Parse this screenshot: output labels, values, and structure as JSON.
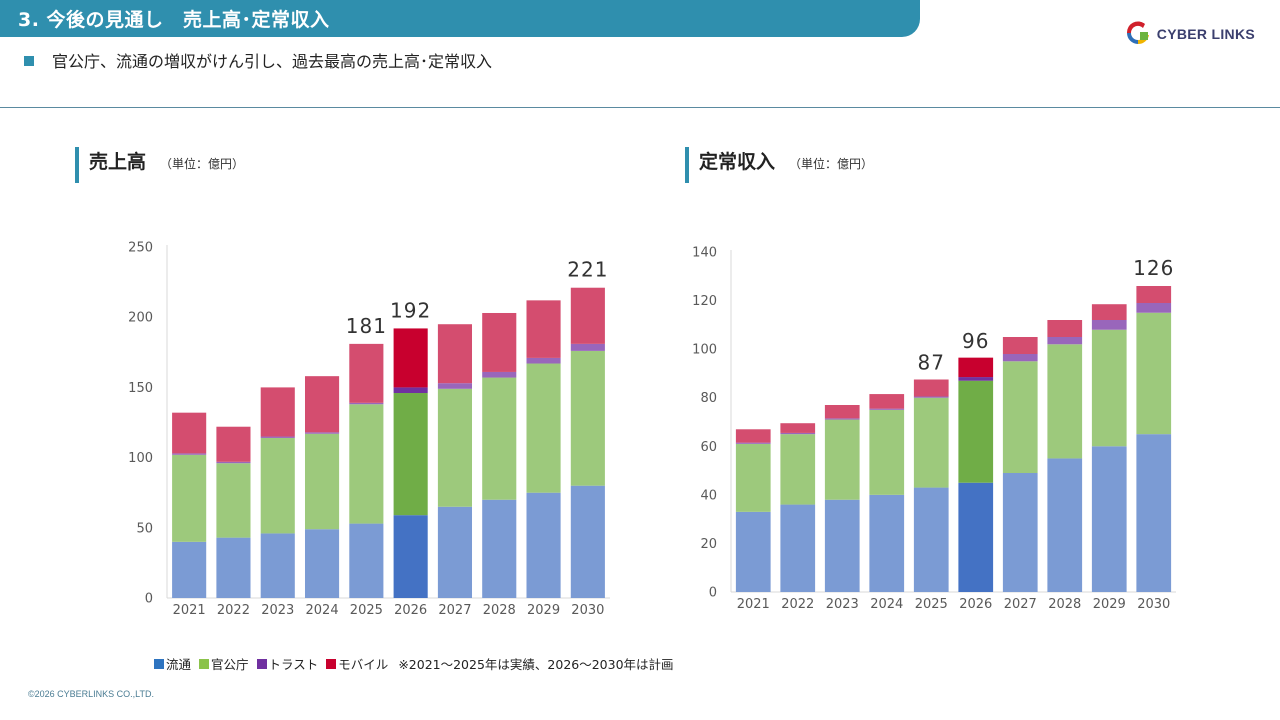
{
  "header": {
    "title": "3. 今後の見通し　売上高･定常収入",
    "subtitle": "官公庁、流通の増収がけん引し、過去最高の売上高･定常収入"
  },
  "logo": {
    "text": "CYBER LINKS"
  },
  "colors": {
    "title_bar": "#2f8fae",
    "ryutsu_actual": "#7b9bd4",
    "ryutsu_2026": "#4472c4",
    "kankocho_actual": "#9dc97c",
    "kankocho_2026": "#70ad47",
    "trust_actual": "#9966bb",
    "trust_2026": "#7030a0",
    "mobile_actual": "#d44d6f",
    "mobile_2026": "#c8002e"
  },
  "legend": {
    "items": [
      {
        "label": "流通",
        "color": "#2e74c0"
      },
      {
        "label": "官公庁",
        "color": "#8bc34a"
      },
      {
        "label": "トラスト",
        "color": "#7030a0"
      },
      {
        "label": "モバイル",
        "color": "#c8002e"
      }
    ],
    "note": "※2021～2025年は実績、2026～2030年は計画"
  },
  "footer": {
    "copyright": "©2026 CYBERLINKS CO.,LTD."
  },
  "chart_data": [
    {
      "type": "bar",
      "stacked": true,
      "title": "売上高",
      "unit": "（単位：億円）",
      "categories": [
        "2021",
        "2022",
        "2023",
        "2024",
        "2025",
        "2026",
        "2027",
        "2028",
        "2029",
        "2030"
      ],
      "ylim": [
        0,
        250
      ],
      "yticks": [
        0,
        50,
        100,
        150,
        200,
        250
      ],
      "series": [
        {
          "name": "流通",
          "values": [
            40,
            43,
            46,
            49,
            53,
            59,
            65,
            70,
            75,
            80
          ]
        },
        {
          "name": "官公庁",
          "values": [
            62,
            53,
            68,
            68,
            85,
            87,
            84,
            87,
            92,
            96
          ]
        },
        {
          "name": "トラスト",
          "values": [
            1,
            1,
            1,
            1,
            1,
            4,
            4,
            4,
            4,
            5
          ]
        },
        {
          "name": "モバイル",
          "values": [
            29,
            25,
            35,
            40,
            42,
            42,
            42,
            42,
            41,
            40
          ]
        }
      ],
      "total_labels": [
        {
          "category": "2025",
          "label": "181",
          "value": 181
        },
        {
          "category": "2026",
          "label": "192",
          "value": 192
        },
        {
          "category": "2030",
          "label": "221",
          "value": 221
        }
      ],
      "highlight_category": "2026"
    },
    {
      "type": "bar",
      "stacked": true,
      "title": "定常収入",
      "unit": "（単位：億円）",
      "categories": [
        "2021",
        "2022",
        "2023",
        "2024",
        "2025",
        "2026",
        "2027",
        "2028",
        "2029",
        "2030"
      ],
      "ylim": [
        0,
        140
      ],
      "yticks": [
        0,
        20,
        40,
        60,
        80,
        100,
        120,
        140
      ],
      "series": [
        {
          "name": "流通",
          "values": [
            33,
            36,
            38,
            40,
            43,
            45,
            49,
            55,
            60,
            65
          ]
        },
        {
          "name": "官公庁",
          "values": [
            28,
            29,
            33,
            35,
            37,
            42,
            46,
            47,
            48,
            50
          ]
        },
        {
          "name": "トラスト",
          "values": [
            0.5,
            0.5,
            0.5,
            0.5,
            0.5,
            1.5,
            3,
            3,
            4,
            4
          ]
        },
        {
          "name": "モバイル",
          "values": [
            5.5,
            4,
            5.5,
            6,
            7,
            8,
            7,
            7,
            6.5,
            7
          ]
        }
      ],
      "total_labels": [
        {
          "category": "2025",
          "label": "87",
          "value": 87
        },
        {
          "category": "2026",
          "label": "96",
          "value": 96
        },
        {
          "category": "2030",
          "label": "126",
          "value": 126
        }
      ],
      "highlight_category": "2026"
    }
  ]
}
